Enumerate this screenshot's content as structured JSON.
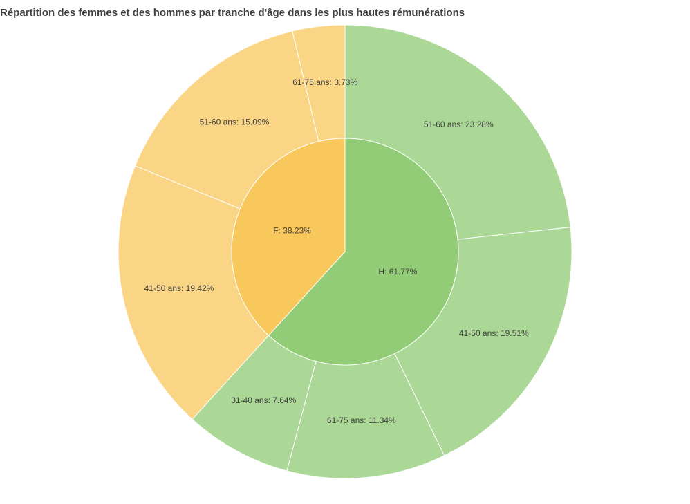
{
  "chart_data": {
    "type": "pie",
    "title": "Répartition des femmes et des hommes par tranche d'âge dans les plus hautes rémunérations",
    "inner": [
      {
        "label": "H: 61.77%",
        "value": 61.77,
        "color": "#93cc76"
      },
      {
        "label": "F: 38.23%",
        "value": 38.23,
        "color": "#f8c85c"
      }
    ],
    "outer": [
      {
        "label": "51-60 ans: 23.28%",
        "value": 23.28,
        "group": "H",
        "color": "#acd897"
      },
      {
        "label": "41-50 ans: 19.51%",
        "value": 19.51,
        "group": "H",
        "color": "#acd897"
      },
      {
        "label": "61-75 ans: 11.34%",
        "value": 11.34,
        "group": "H",
        "color": "#acd897"
      },
      {
        "label": "31-40 ans: 7.64%",
        "value": 7.64,
        "group": "H",
        "color": "#acd897"
      },
      {
        "label": "41-50 ans: 19.42%",
        "value": 19.42,
        "group": "F",
        "color": "#fad586"
      },
      {
        "label": "51-60 ans: 15.09%",
        "value": 15.09,
        "group": "F",
        "color": "#fad586"
      },
      {
        "label": "61-75 ans: 3.73%",
        "value": 3.73,
        "group": "F",
        "color": "#fad586"
      }
    ],
    "start_angle": "top",
    "direction": "clockwise",
    "legend": "none"
  }
}
